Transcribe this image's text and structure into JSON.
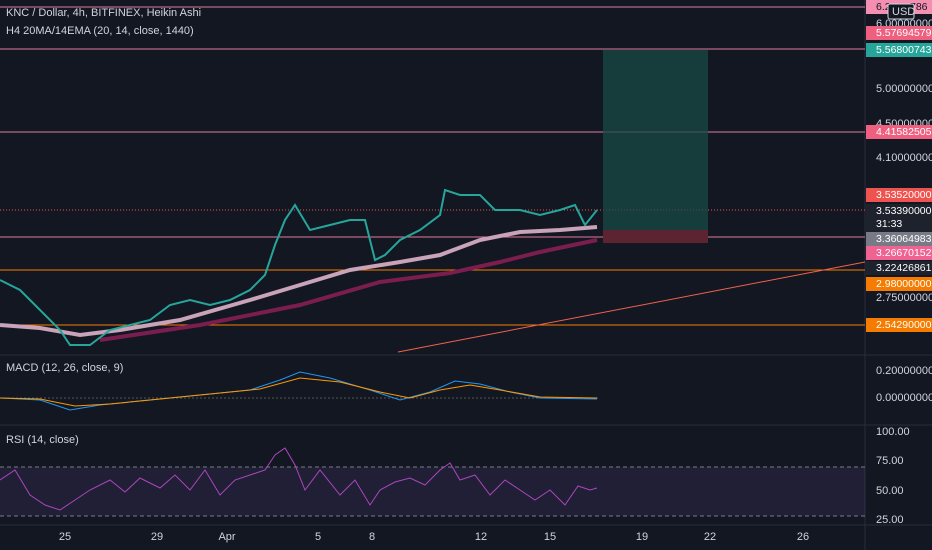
{
  "header": {
    "symbol": "KNC / Dollar, 4h, BITFINEX, Heikin Ashi",
    "indicator": "H4 20MA/14EMA (20, 14, close, 1440)"
  },
  "currency": "USD",
  "price_axis": {
    "ticks": [
      "6.00000000",
      "5.00000000",
      "4.50000000",
      "4.10000000",
      "2.75000000"
    ]
  },
  "price_labels": [
    "6.2",
    "786",
    "5.57694579",
    "5.56800743",
    "4.41582505",
    "3.53520000",
    "3.53390000",
    "31:33",
    "3.36064983",
    "3.26670152",
    "3.22426861",
    "2.98000000",
    "2.54290000"
  ],
  "macd": {
    "title": "MACD (12, 26, close, 9)",
    "ticks": [
      "0.20000000",
      "0.00000000"
    ]
  },
  "rsi": {
    "title": "RSI (14, close)",
    "ticks": [
      "100.00",
      "75.00",
      "50.00",
      "25.00"
    ]
  },
  "time_axis": [
    "25",
    "29",
    "Apr",
    "5",
    "8",
    "12",
    "15",
    "19",
    "22",
    "26"
  ]
}
